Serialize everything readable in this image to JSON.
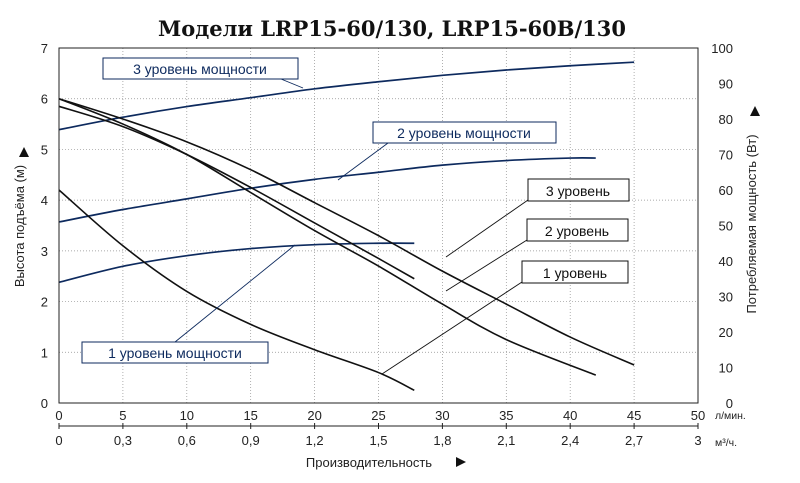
{
  "chart_data": {
    "type": "line",
    "title": "Модели LRP15-60/130, LRP15-60B/130",
    "xlabel": "Производительность",
    "x_unit_top": "л/мин.",
    "x_unit_bottom": "м³/ч.",
    "ylabel_left": "Высота подъёма (м)",
    "ylabel_right": "Потребляемая мощность (Вт)",
    "xlim": [
      0,
      50
    ],
    "ylim_left": [
      0,
      7
    ],
    "ylim_right": [
      0,
      100
    ],
    "x_ticks_top": [
      "0",
      "5",
      "10",
      "15",
      "20",
      "25",
      "30",
      "35",
      "40",
      "45",
      "50"
    ],
    "x_ticks_bottom": [
      "0",
      "0,3",
      "0,6",
      "0,9",
      "1,2",
      "1,5",
      "1,8",
      "2,1",
      "2,4",
      "2,7",
      "3"
    ],
    "y_ticks_left": [
      "0",
      "1",
      "2",
      "3",
      "4",
      "5",
      "6",
      "7"
    ],
    "y_ticks_right": [
      "0",
      "10",
      "20",
      "30",
      "40",
      "50",
      "60",
      "70",
      "80",
      "90",
      "100"
    ],
    "grid": true,
    "head_curves": [
      {
        "name": "3 уровень",
        "axis": "left",
        "x": [
          0,
          5,
          10,
          15,
          20,
          25,
          30,
          35,
          40,
          45
        ],
        "y": [
          6.0,
          5.6,
          5.15,
          4.6,
          3.95,
          3.3,
          2.6,
          1.95,
          1.3,
          0.75
        ]
      },
      {
        "name": "2 уровень",
        "axis": "left",
        "x": [
          0,
          5,
          10,
          15,
          20,
          25,
          30,
          35,
          42
        ],
        "y": [
          6.0,
          5.5,
          4.9,
          4.15,
          3.4,
          2.7,
          1.95,
          1.25,
          0.55
        ]
      },
      {
        "name": "1 уровень",
        "axis": "left",
        "x": [
          0,
          5,
          10,
          15,
          20,
          25,
          27.8
        ],
        "y": [
          4.2,
          3.1,
          2.2,
          1.55,
          1.05,
          0.6,
          0.25
        ]
      },
      {
        "name": "",
        "axis": "left",
        "x": [
          0,
          5,
          10,
          15,
          20,
          25,
          27.8
        ],
        "y": [
          5.85,
          5.45,
          4.9,
          4.25,
          3.55,
          2.85,
          2.45
        ]
      }
    ],
    "power_curves": [
      {
        "name": "3 уровень мощности",
        "axis": "right",
        "x": [
          0,
          5,
          10,
          15,
          20,
          25,
          30,
          35,
          40,
          45
        ],
        "y": [
          77,
          80.5,
          83.5,
          86,
          88.5,
          90.5,
          92.3,
          93.8,
          95,
          96
        ]
      },
      {
        "name": "2 уровень мощности",
        "axis": "right",
        "x": [
          0,
          5,
          10,
          15,
          20,
          25,
          30,
          35,
          40,
          42
        ],
        "y": [
          51,
          54.5,
          57.5,
          60.5,
          63,
          65,
          67,
          68.3,
          69,
          69
        ]
      },
      {
        "name": "1 уровень мощности",
        "axis": "right",
        "x": [
          0,
          5,
          10,
          15,
          20,
          25,
          27.8
        ],
        "y": [
          34,
          38.5,
          41.5,
          43.5,
          44.6,
          45,
          45
        ]
      }
    ]
  }
}
